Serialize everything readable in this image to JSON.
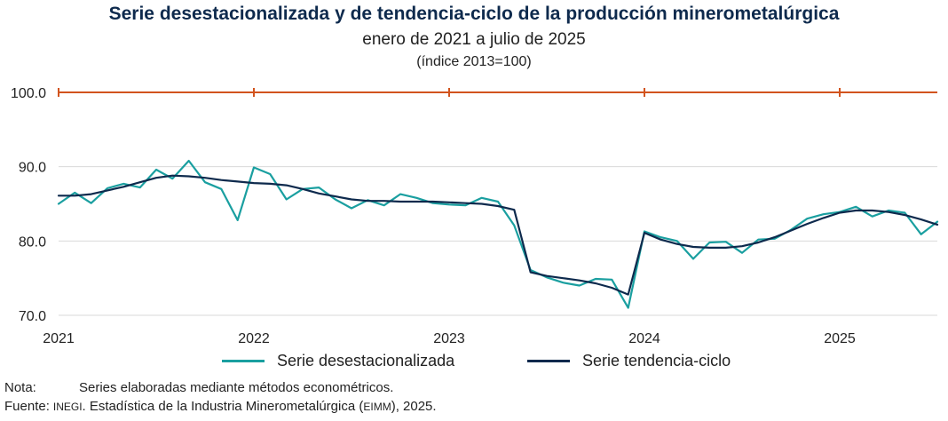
{
  "title": "Serie desestacionalizada y de tendencia-ciclo de la producción minerometalúrgica",
  "subtitle": "enero de 2021 a julio de 2025",
  "unit": "(índice 2013=100)",
  "note": {
    "label": "Nota:",
    "text": "Series elaboradas mediante métodos econométricos."
  },
  "source": {
    "label": "Fuente:",
    "org": "INEGI",
    "text_a": ". Estadística de la Industria Minerometalúrgica (",
    "abbr": "EIMM",
    "text_b": "), 2025."
  },
  "colors": {
    "seasonal": "#1a9fa0",
    "trend": "#0e2a4d",
    "reference": "#d2541e",
    "grid": "#d9d9d9"
  },
  "chart_data": {
    "type": "line",
    "x_start": "2021-01",
    "x_end": "2025-07",
    "x_ticks": [
      "2021",
      "2022",
      "2023",
      "2024",
      "2025"
    ],
    "y_ticks": [
      "70.0",
      "80.0",
      "90.0",
      "100.0"
    ],
    "ylim": [
      70,
      100
    ],
    "grid": true,
    "legend_position": "bottom",
    "reference_line": {
      "y": 100.0
    },
    "series": [
      {
        "name": "Serie desestacionalizada",
        "values": [
          85.0,
          86.5,
          85.1,
          87.1,
          87.7,
          87.2,
          89.6,
          88.4,
          90.8,
          87.9,
          87.0,
          82.8,
          89.9,
          89.0,
          85.6,
          87.0,
          87.2,
          85.6,
          84.4,
          85.5,
          84.8,
          86.3,
          85.8,
          85.1,
          84.9,
          84.8,
          85.8,
          85.3,
          82.1,
          76.1,
          75.1,
          74.4,
          74.0,
          74.9,
          74.8,
          71.0,
          81.3,
          80.5,
          80.0,
          77.6,
          79.8,
          79.9,
          78.4,
          80.2,
          80.3,
          81.5,
          83.0,
          83.6,
          83.9,
          84.6,
          83.3,
          84.1,
          83.8,
          80.9,
          82.6
        ]
      },
      {
        "name": "Serie tendencia-ciclo",
        "values": [
          86.1,
          86.1,
          86.3,
          86.8,
          87.3,
          87.9,
          88.5,
          88.8,
          88.7,
          88.5,
          88.2,
          88.0,
          87.8,
          87.7,
          87.5,
          87.0,
          86.4,
          86.0,
          85.6,
          85.4,
          85.4,
          85.3,
          85.3,
          85.3,
          85.2,
          85.1,
          85.0,
          84.7,
          84.2,
          75.8,
          75.3,
          75.0,
          74.7,
          74.3,
          73.7,
          72.8,
          81.1,
          80.2,
          79.6,
          79.2,
          79.1,
          79.1,
          79.3,
          79.8,
          80.5,
          81.4,
          82.3,
          83.1,
          83.8,
          84.1,
          84.1,
          83.9,
          83.5,
          82.9,
          82.2
        ]
      }
    ]
  }
}
